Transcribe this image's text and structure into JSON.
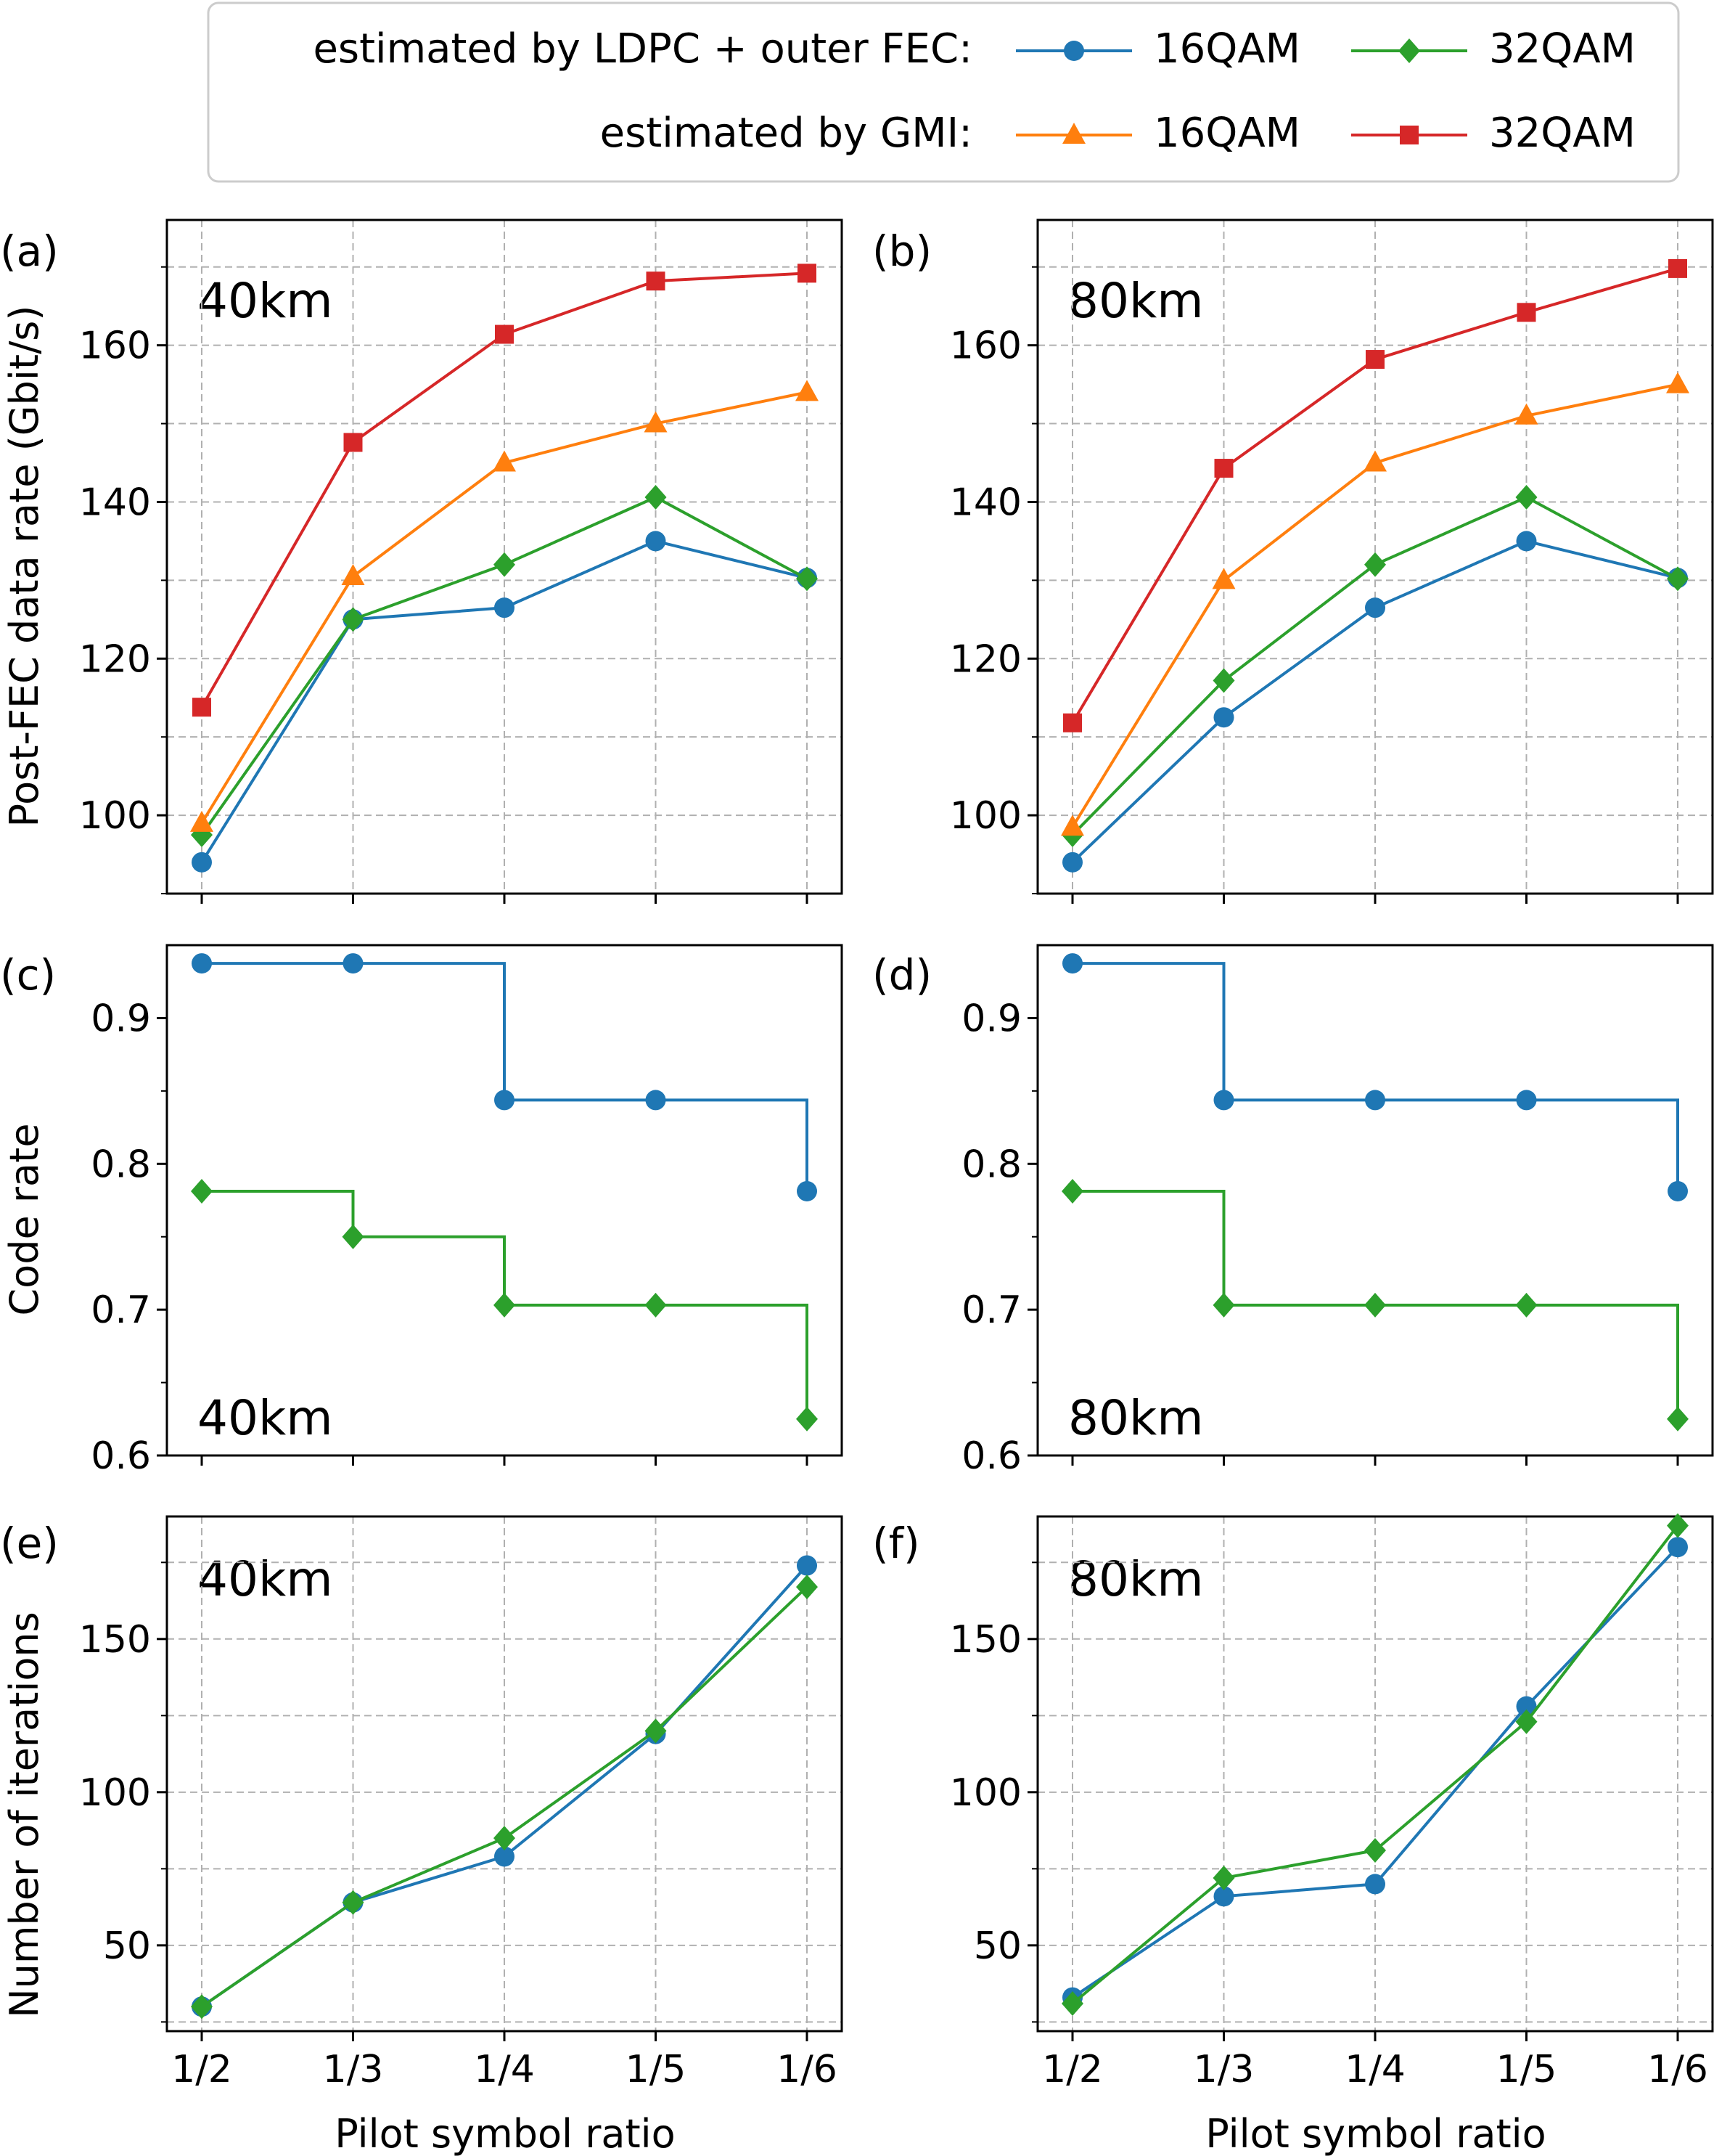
{
  "legend": {
    "row1_label": "estimated by LDPC + outer FEC:",
    "row2_label": "estimated by GMI:",
    "entries": [
      {
        "name": "16QAM",
        "group": "LDPC",
        "color": "#1f77b4",
        "marker": "circle"
      },
      {
        "name": "32QAM",
        "group": "LDPC",
        "color": "#2ca02c",
        "marker": "diamond"
      },
      {
        "name": "16QAM",
        "group": "GMI",
        "color": "#ff7f0e",
        "marker": "triangle"
      },
      {
        "name": "32QAM",
        "group": "GMI",
        "color": "#d62728",
        "marker": "square"
      }
    ]
  },
  "axes": {
    "xlabel": "Pilot symbol ratio",
    "ylabel_rate": "Post-FEC data rate (Gbit/s)",
    "ylabel_code": "Code rate",
    "ylabel_iter": "Number of iterations"
  },
  "chart_data": [
    {
      "panel": "(a)",
      "distance": "40km",
      "type": "line",
      "categories": [
        "1/2",
        "1/3",
        "1/4",
        "1/5",
        "1/6"
      ],
      "ylim": [
        90,
        176
      ],
      "yticks": [
        100,
        120,
        140,
        160
      ],
      "yminor": [
        90,
        110,
        130,
        150,
        170
      ],
      "xlabel": "",
      "ylabel": "Post-FEC data rate (Gbit/s)",
      "grid": true,
      "series": [
        {
          "name": "16QAM (LDPC + outer FEC)",
          "color": "#1f77b4",
          "marker": "circle",
          "step": false,
          "values": [
            94.0,
            125.0,
            126.5,
            135.0,
            130.3
          ]
        },
        {
          "name": "32QAM (LDPC + outer FEC)",
          "color": "#2ca02c",
          "marker": "diamond",
          "step": false,
          "values": [
            97.5,
            125.0,
            132.0,
            140.6,
            130.2
          ]
        },
        {
          "name": "16QAM (GMI)",
          "color": "#ff7f0e",
          "marker": "triangle",
          "step": false,
          "values": [
            99.0,
            130.5,
            145.0,
            150.0,
            154.0
          ]
        },
        {
          "name": "32QAM (GMI)",
          "color": "#d62728",
          "marker": "square",
          "step": false,
          "values": [
            113.8,
            147.6,
            161.4,
            168.2,
            169.2
          ]
        }
      ]
    },
    {
      "panel": "(b)",
      "distance": "80km",
      "type": "line",
      "categories": [
        "1/2",
        "1/3",
        "1/4",
        "1/5",
        "1/6"
      ],
      "ylim": [
        90,
        176
      ],
      "yticks": [
        100,
        120,
        140,
        160
      ],
      "yminor": [
        90,
        110,
        130,
        150,
        170
      ],
      "xlabel": "",
      "ylabel": "",
      "grid": true,
      "series": [
        {
          "name": "16QAM (LDPC + outer FEC)",
          "color": "#1f77b4",
          "marker": "circle",
          "step": false,
          "values": [
            94.0,
            112.5,
            126.5,
            135.0,
            130.3
          ]
        },
        {
          "name": "32QAM (LDPC + outer FEC)",
          "color": "#2ca02c",
          "marker": "diamond",
          "step": false,
          "values": [
            97.5,
            117.2,
            132.0,
            140.6,
            130.2
          ]
        },
        {
          "name": "16QAM (GMI)",
          "color": "#ff7f0e",
          "marker": "triangle",
          "step": false,
          "values": [
            98.5,
            130.0,
            145.0,
            151.0,
            155.0
          ]
        },
        {
          "name": "32QAM (GMI)",
          "color": "#d62728",
          "marker": "square",
          "step": false,
          "values": [
            111.8,
            144.3,
            158.2,
            164.2,
            169.8
          ]
        }
      ]
    },
    {
      "panel": "(c)",
      "distance": "40km",
      "type": "line",
      "categories": [
        "1/2",
        "1/3",
        "1/4",
        "1/5",
        "1/6"
      ],
      "ylim": [
        0.6,
        0.95
      ],
      "yticks": [
        0.6,
        0.7,
        0.8,
        0.9
      ],
      "yminor": [
        0.65,
        0.75,
        0.85
      ],
      "xlabel": "",
      "ylabel": "Code rate",
      "grid": false,
      "series": [
        {
          "name": "16QAM",
          "color": "#1f77b4",
          "marker": "circle",
          "step": true,
          "values": [
            0.9375,
            0.9375,
            0.84375,
            0.84375,
            0.78125
          ]
        },
        {
          "name": "32QAM",
          "color": "#2ca02c",
          "marker": "diamond",
          "step": true,
          "values": [
            0.78125,
            0.75,
            0.703125,
            0.703125,
            0.625
          ]
        }
      ]
    },
    {
      "panel": "(d)",
      "distance": "80km",
      "type": "line",
      "categories": [
        "1/2",
        "1/3",
        "1/4",
        "1/5",
        "1/6"
      ],
      "ylim": [
        0.6,
        0.95
      ],
      "yticks": [
        0.6,
        0.7,
        0.8,
        0.9
      ],
      "yminor": [
        0.65,
        0.75,
        0.85
      ],
      "xlabel": "",
      "ylabel": "",
      "grid": false,
      "series": [
        {
          "name": "16QAM",
          "color": "#1f77b4",
          "marker": "circle",
          "step": true,
          "values": [
            0.9375,
            0.84375,
            0.84375,
            0.84375,
            0.78125
          ]
        },
        {
          "name": "32QAM",
          "color": "#2ca02c",
          "marker": "diamond",
          "step": true,
          "values": [
            0.78125,
            0.703125,
            0.703125,
            0.703125,
            0.625
          ]
        }
      ]
    },
    {
      "panel": "(e)",
      "distance": "40km",
      "type": "line",
      "categories": [
        "1/2",
        "1/3",
        "1/4",
        "1/5",
        "1/6"
      ],
      "ylim": [
        22,
        190
      ],
      "yticks": [
        50,
        100,
        150
      ],
      "yminor": [
        25,
        75,
        125,
        175
      ],
      "xlabel": "Pilot symbol ratio",
      "ylabel": "Number of iterations",
      "grid": true,
      "series": [
        {
          "name": "16QAM",
          "color": "#1f77b4",
          "marker": "circle",
          "step": false,
          "values": [
            30,
            64,
            79,
            119,
            174
          ]
        },
        {
          "name": "32QAM",
          "color": "#2ca02c",
          "marker": "diamond",
          "step": false,
          "values": [
            30,
            64,
            85,
            120,
            167
          ]
        }
      ]
    },
    {
      "panel": "(f)",
      "distance": "80km",
      "type": "line",
      "categories": [
        "1/2",
        "1/3",
        "1/4",
        "1/5",
        "1/6"
      ],
      "ylim": [
        22,
        190
      ],
      "yticks": [
        50,
        100,
        150
      ],
      "yminor": [
        25,
        75,
        125,
        175
      ],
      "xlabel": "Pilot symbol ratio",
      "ylabel": "",
      "grid": true,
      "series": [
        {
          "name": "16QAM",
          "color": "#1f77b4",
          "marker": "circle",
          "step": false,
          "values": [
            33,
            66,
            70,
            128,
            180
          ]
        },
        {
          "name": "32QAM",
          "color": "#2ca02c",
          "marker": "diamond",
          "step": false,
          "values": [
            31,
            72,
            81,
            123,
            187
          ]
        }
      ]
    }
  ]
}
